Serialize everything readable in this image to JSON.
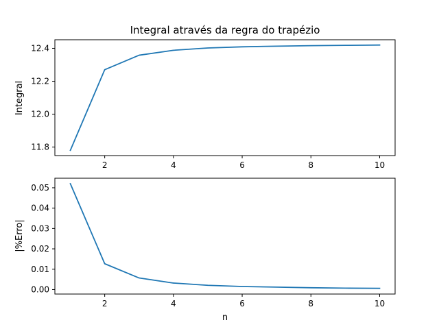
{
  "chart_data": [
    {
      "type": "line",
      "title": "Integral através da regra do trapézio",
      "xlabel": "n",
      "ylabel": "Integral",
      "xlim": [
        0.55,
        10.45
      ],
      "ylim": [
        11.748,
        12.452
      ],
      "xticks": [
        2,
        4,
        6,
        8,
        10
      ],
      "yticks": [
        11.8,
        12.0,
        12.2,
        12.4
      ],
      "ytick_labels": [
        "11.8",
        "12.0",
        "12.2",
        "12.4"
      ],
      "grid": false,
      "series": [
        {
          "color": "#1f77b4",
          "x": [
            1,
            2,
            3,
            4,
            5,
            6,
            7,
            8,
            9,
            10
          ],
          "values": [
            11.78,
            12.27,
            12.358,
            12.388,
            12.402,
            12.409,
            12.413,
            12.416,
            12.418,
            12.42
          ]
        }
      ]
    },
    {
      "type": "line",
      "title": "",
      "xlabel": "n",
      "ylabel": "|%Erro|",
      "xlim": [
        0.55,
        10.45
      ],
      "ylim": [
        -0.0022,
        0.0547
      ],
      "xticks": [
        2,
        4,
        6,
        8,
        10
      ],
      "yticks": [
        0.0,
        0.01,
        0.02,
        0.03,
        0.04,
        0.05
      ],
      "ytick_labels": [
        "0.00",
        "0.01",
        "0.02",
        "0.03",
        "0.04",
        "0.05"
      ],
      "grid": false,
      "series": [
        {
          "color": "#1f77b4",
          "x": [
            1,
            2,
            3,
            4,
            5,
            6,
            7,
            8,
            9,
            10
          ],
          "values": [
            0.052,
            0.0127,
            0.0057,
            0.0032,
            0.0021,
            0.0015,
            0.0012,
            0.0009,
            0.0007,
            0.0006
          ]
        }
      ]
    }
  ]
}
